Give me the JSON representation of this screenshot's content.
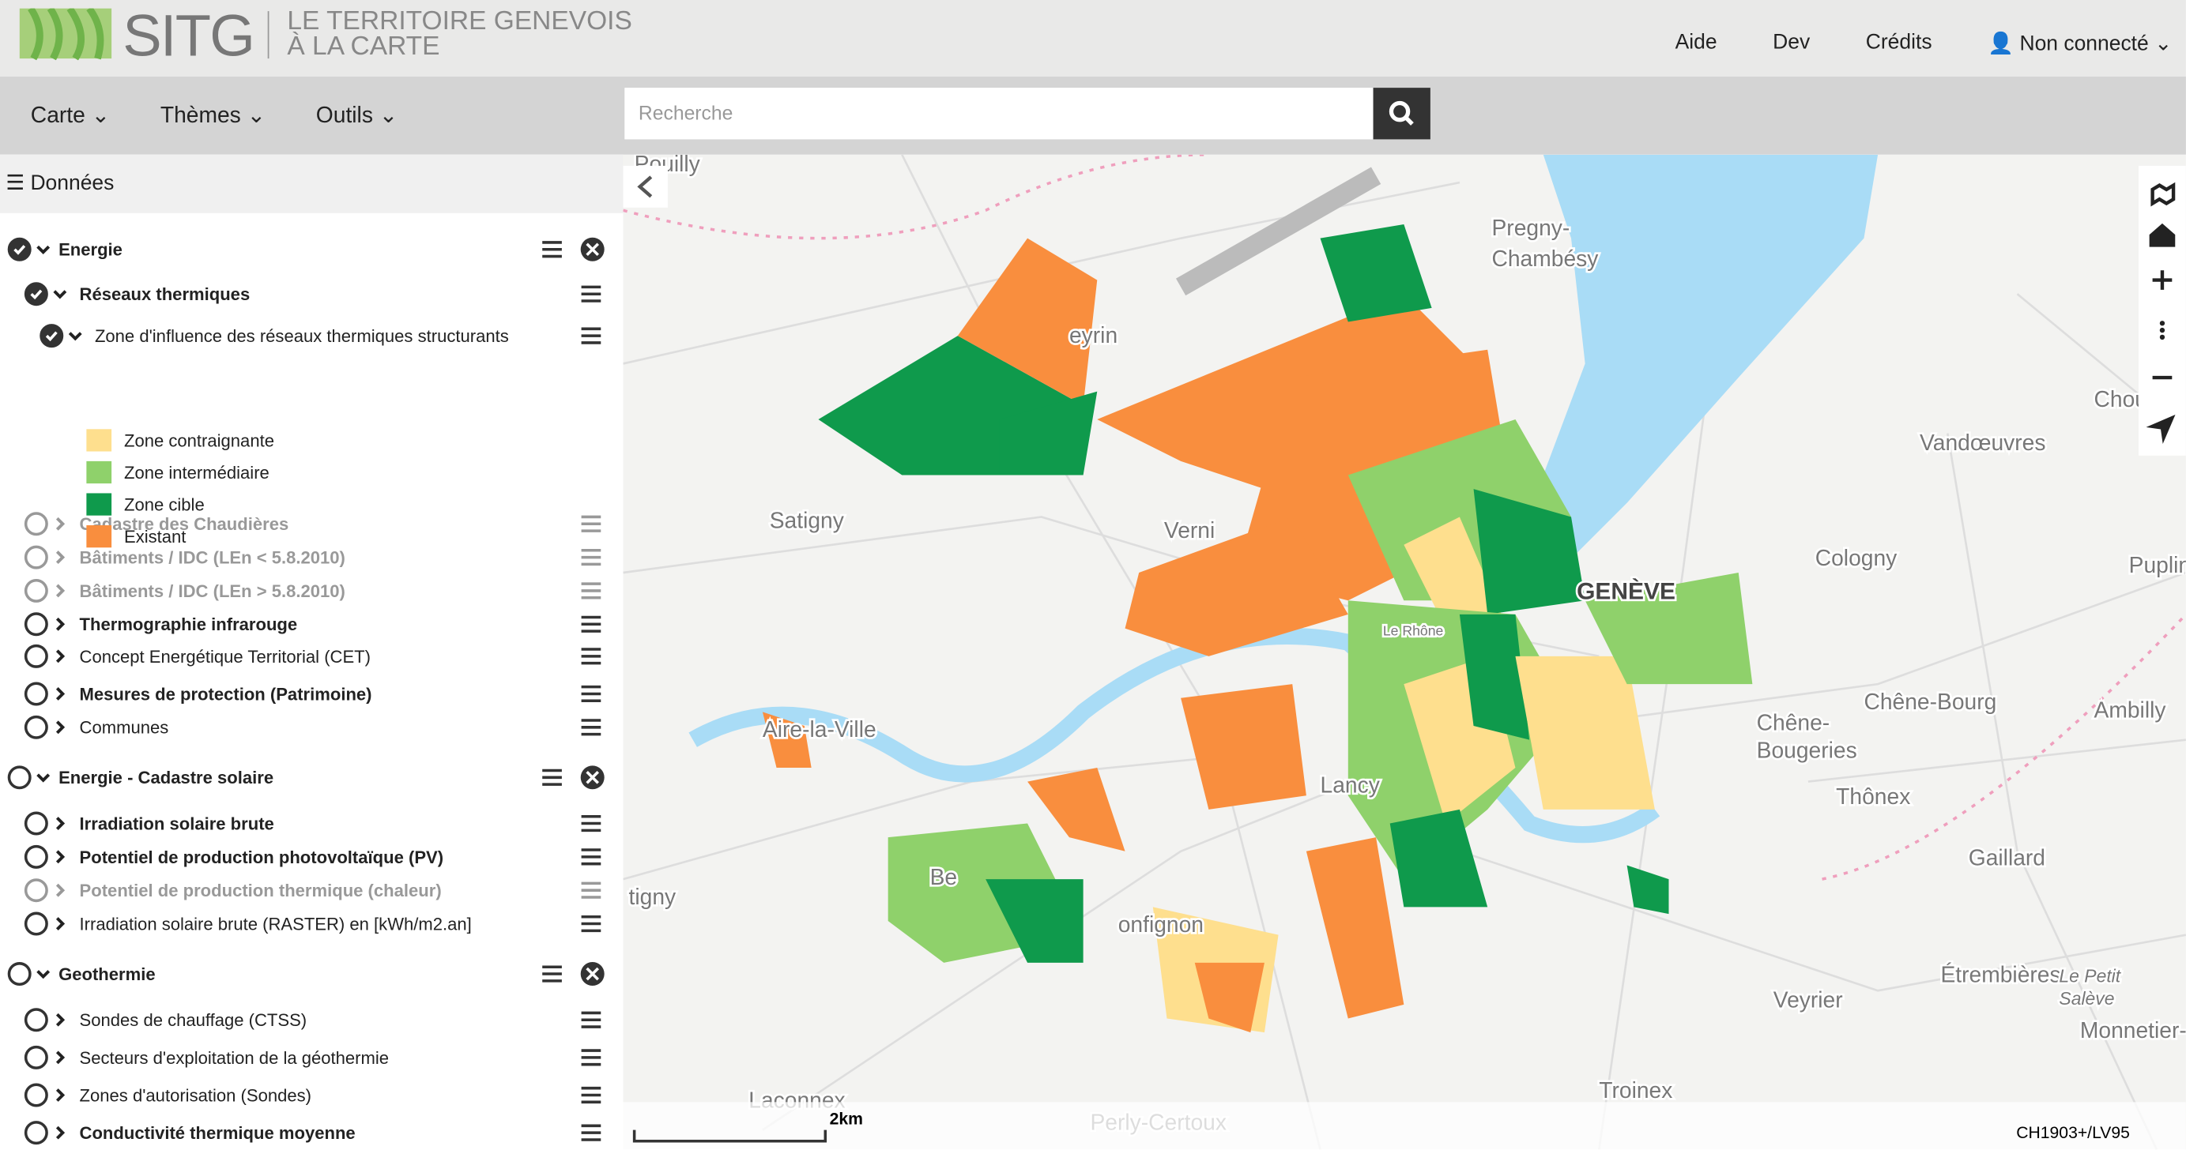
{
  "header": {
    "logo": "SITG",
    "tagline": [
      "LE TERRITOIRE GENEVOIS",
      "À LA CARTE"
    ],
    "nav": [
      "Aide",
      "Dev",
      "Crédits",
      "Non connecté"
    ]
  },
  "toolbar": {
    "menus": [
      "Carte",
      "Thèmes",
      "Outils"
    ],
    "search_placeholder": "Recherche"
  },
  "panel": {
    "title": "Données",
    "rows": [
      "Energie",
      "Réseaux thermiques",
      "Zone d'influence des réseaux thermiques structurants",
      "Cadastre des Chaudières",
      "Bâtiments / IDC (LEn < 5.8.2010)",
      "Bâtiments / IDC (LEn > 5.8.2010)",
      "Thermographie infrarouge",
      "Concept Energétique Territorial (CET)",
      "Mesures de protection (Patrimoine)",
      "Communes",
      "Energie - Cadastre solaire",
      "Irradiation solaire brute",
      "Potentiel de production photovoltaïque (PV)",
      "Potentiel de production thermique (chaleur)",
      "Irradiation solaire brute (RASTER) en [kWh/m2.an]",
      "Geothermie",
      "Sondes de chauffage (CTSS)",
      "Secteurs d'exploitation de la géothermie",
      "Zones d'autorisation (Sondes)",
      "Conductivité thermique moyenne"
    ],
    "legend": [
      {
        "label": "Zone contraignante",
        "color": "#fedf8e"
      },
      {
        "label": "Zone intermédiaire",
        "color": "#8fd16b"
      },
      {
        "label": "Zone cible",
        "color": "#0f9a4c"
      },
      {
        "label": "Existant",
        "color": "#f98e3e"
      }
    ]
  },
  "map": {
    "places": [
      "Pregny-",
      "Chambésy",
      "eyrin",
      "Satigny",
      "Verni",
      "GENÈVE",
      "Le Rhône",
      "Cologny",
      "Vandœuvres",
      "Choulex",
      "Puplinge",
      "Chêne-Bourg",
      "Chêne-",
      "Bougeries",
      "Thônex",
      "Ambilly",
      "Gaillard",
      "Aire-la-Ville",
      "Lancy",
      "onfignon",
      "Veyrier",
      "Étrembières",
      "Le Petit",
      "Salève",
      "Monnetier-Mornex",
      "Troinex",
      "Laconnex",
      "Perly-Certoux",
      "Pouilly",
      "tigny",
      "Be"
    ],
    "scale": "2km",
    "projection": "CH1903+/LV95"
  }
}
